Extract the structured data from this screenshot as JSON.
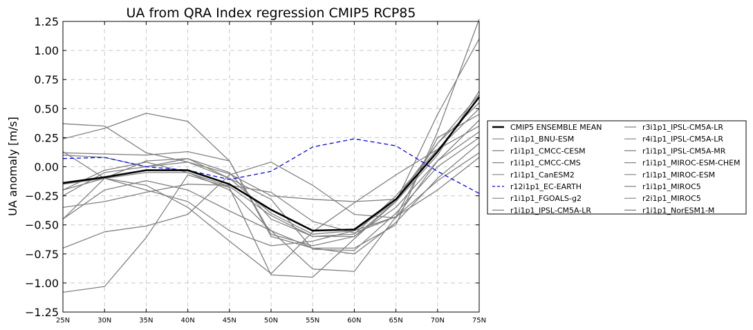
{
  "chart_data": {
    "type": "line",
    "title": "UA from QRA Index regression CMIP5 RCP85",
    "xlabel": "",
    "ylabel": "UA anomaly [m/s]",
    "x": [
      "25N",
      "30N",
      "35N",
      "40N",
      "45N",
      "50N",
      "55N",
      "60N",
      "65N",
      "70N",
      "75N"
    ],
    "ylim": [
      -1.25,
      1.25
    ],
    "yticks": [
      "−1.25",
      "−1.00",
      "−0.75",
      "−0.50",
      "−0.25",
      "0.00",
      "0.25",
      "0.50",
      "0.75",
      "1.00",
      "1.25"
    ],
    "grid": true,
    "legend_placement": "right, outside plot",
    "series": [
      {
        "name": "CMIP5 ENSEMBLE MEAN",
        "color": "#000000",
        "style": "bold",
        "values": [
          -0.14,
          -0.09,
          -0.03,
          -0.03,
          -0.15,
          -0.37,
          -0.55,
          -0.54,
          -0.28,
          0.13,
          0.6
        ]
      },
      {
        "name": "r1i1p1_BNU-ESM",
        "color": "#808080",
        "style": "solid",
        "values": [
          0.37,
          0.35,
          0.12,
          0.04,
          -0.06,
          -0.25,
          -0.28,
          -0.3,
          -0.28,
          0.2,
          0.55
        ]
      },
      {
        "name": "r1i1p1_CMCC-CESM",
        "color": "#808080",
        "style": "solid",
        "values": [
          0.12,
          0.11,
          0.1,
          0.13,
          0.05,
          -0.6,
          -0.7,
          -0.7,
          -0.5,
          0.3,
          1.27
        ]
      },
      {
        "name": "r1i1p1_CMCC-CMS",
        "color": "#808080",
        "style": "solid",
        "values": [
          0.24,
          0.33,
          0.46,
          0.39,
          0.05,
          -0.58,
          -0.68,
          -0.6,
          -0.3,
          0.45,
          1.1
        ]
      },
      {
        "name": "r1i1p1_CanESM2",
        "color": "#808080",
        "style": "solid",
        "values": [
          0.1,
          0.08,
          0.0,
          0.07,
          -0.1,
          -0.4,
          -0.58,
          -0.55,
          -0.3,
          0.1,
          0.65
        ]
      },
      {
        "name": "r12i1p1_EC-EARTH",
        "color": "#0000ee",
        "style": "dashed",
        "values": [
          0.07,
          0.08,
          0.0,
          -0.03,
          -0.11,
          -0.04,
          0.17,
          0.24,
          0.18,
          -0.04,
          -0.23
        ]
      },
      {
        "name": "r1i1p1_FGOALS-g2",
        "color": "#808080",
        "style": "solid",
        "values": [
          -0.45,
          -0.2,
          -0.12,
          -0.2,
          -0.38,
          -0.55,
          -0.88,
          -0.9,
          -0.43,
          0.25,
          0.45
        ]
      },
      {
        "name": "r1i1p1_IPSL-CM5A-LR",
        "color": "#808080",
        "style": "solid",
        "values": [
          -0.7,
          -0.56,
          -0.51,
          -0.41,
          -0.07,
          0.04,
          -0.16,
          -0.41,
          -0.44,
          0.05,
          0.4
        ]
      },
      {
        "name": "r3i1p1_IPSL-CM5A-LR",
        "color": "#808080",
        "style": "solid",
        "values": [
          -1.08,
          -1.03,
          -0.61,
          -0.07,
          -0.18,
          -0.93,
          -0.95,
          -0.62,
          -0.3,
          0.2,
          0.62
        ]
      },
      {
        "name": "r4i1p1_IPSL-CM5A-LR",
        "color": "#808080",
        "style": "solid",
        "values": [
          -0.25,
          -0.05,
          0.0,
          0.04,
          -0.1,
          -0.28,
          -0.71,
          -0.72,
          -0.4,
          0.0,
          0.25
        ]
      },
      {
        "name": "r1i1p1_IPSL-CM5A-MR",
        "color": "#808080",
        "style": "solid",
        "values": [
          -0.2,
          -0.1,
          0.05,
          0.07,
          -0.05,
          -0.45,
          -0.6,
          -0.58,
          -0.25,
          0.15,
          0.5
        ]
      },
      {
        "name": "r1i1p1_MIROC-ESM-CHEM",
        "color": "#808080",
        "style": "solid",
        "values": [
          -0.35,
          -0.3,
          -0.22,
          -0.15,
          -0.16,
          -0.22,
          -0.47,
          -0.57,
          -0.43,
          -0.2,
          0.08
        ]
      },
      {
        "name": "r1i1p1_MIROC-ESM",
        "color": "#808080",
        "style": "solid",
        "values": [
          -0.45,
          -0.1,
          -0.16,
          -0.35,
          -0.64,
          -0.92,
          -0.56,
          -0.31,
          -0.07,
          0.15,
          0.35
        ]
      },
      {
        "name": "r1i1p1_MIROC5",
        "color": "#808080",
        "style": "solid",
        "values": [
          -0.2,
          -0.03,
          0.04,
          -0.05,
          -0.2,
          -0.55,
          -0.7,
          -0.75,
          -0.48,
          -0.1,
          0.2
        ]
      },
      {
        "name": "r2i1p1_MIROC5",
        "color": "#808080",
        "style": "solid",
        "values": [
          0.13,
          -0.1,
          -0.2,
          -0.3,
          -0.55,
          -0.68,
          -0.64,
          -0.55,
          -0.43,
          -0.12,
          0.12
        ]
      },
      {
        "name": "r1i1p1_NorESM1-M",
        "color": "#808080",
        "style": "solid",
        "values": [
          -0.15,
          -0.1,
          -0.05,
          -0.05,
          -0.17,
          -0.42,
          -0.6,
          -0.6,
          -0.35,
          0.05,
          0.3
        ]
      }
    ]
  }
}
